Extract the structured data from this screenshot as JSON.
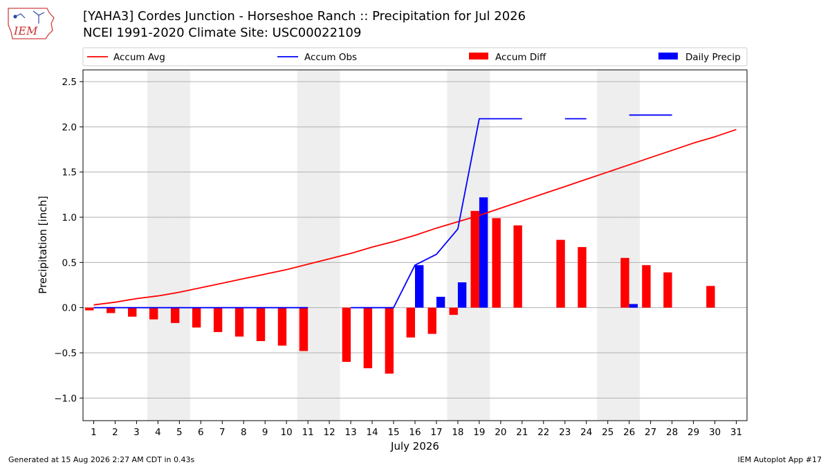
{
  "header": {
    "title_line1": "[YAHA3] Cordes Junction - Horseshoe Ranch :: Precipitation for Jul 2026",
    "title_line2": "NCEI 1991-2020 Climate Site: USC00022109",
    "logo_text": "IEM"
  },
  "footer": {
    "generated": "Generated at 15 Aug 2026 2:27 AM CDT in 0.43s",
    "app": "IEM Autoplot App #17"
  },
  "colors": {
    "avg": "#ff0000",
    "obs": "#0000ff",
    "diff": "#ff0000",
    "daily": "#0000ff",
    "weekend": "#eeeeee",
    "grid": "#b0b0b0"
  },
  "chart_data": {
    "type": "bar",
    "xlabel": "July 2026",
    "ylabel": "Precipitation [inch]",
    "xlim": [
      0.5,
      31.5
    ],
    "ylim": [
      -1.25,
      2.63
    ],
    "yticks": [
      -1.0,
      -0.5,
      0.0,
      0.5,
      1.0,
      1.5,
      2.0,
      2.5
    ],
    "ytick_labels": [
      "−1.0",
      "−0.5",
      "0.0",
      "0.5",
      "1.0",
      "1.5",
      "2.0",
      "2.5"
    ],
    "x": [
      1,
      2,
      3,
      4,
      5,
      6,
      7,
      8,
      9,
      10,
      11,
      12,
      13,
      14,
      15,
      16,
      17,
      18,
      19,
      20,
      21,
      22,
      23,
      24,
      25,
      26,
      27,
      28,
      29,
      30,
      31
    ],
    "xtick_labels": [
      "1",
      "2",
      "3",
      "4",
      "5",
      "6",
      "7",
      "8",
      "9",
      "10",
      "11",
      "12",
      "13",
      "14",
      "15",
      "16",
      "17",
      "18",
      "19",
      "20",
      "21",
      "22",
      "23",
      "24",
      "25",
      "26",
      "27",
      "28",
      "29",
      "30",
      "31"
    ],
    "weekend_days": [
      4,
      5,
      11,
      12,
      18,
      19,
      25,
      26
    ],
    "grid": true,
    "legend": {
      "placement": "top",
      "entries": [
        {
          "label": "Accum Avg",
          "kind": "line",
          "color": "#ff0000"
        },
        {
          "label": "Accum Obs",
          "kind": "line",
          "color": "#0000ff"
        },
        {
          "label": "Accum Diff",
          "kind": "bar",
          "color": "#ff0000"
        },
        {
          "label": "Daily Precip",
          "kind": "bar",
          "color": "#0000ff"
        }
      ]
    },
    "series": [
      {
        "name": "Accum Avg",
        "type": "line",
        "values": [
          0.03,
          0.06,
          0.1,
          0.13,
          0.17,
          0.22,
          0.27,
          0.32,
          0.37,
          0.42,
          0.48,
          0.54,
          0.6,
          0.67,
          0.73,
          0.8,
          0.88,
          0.95,
          1.02,
          1.1,
          1.18,
          1.26,
          1.34,
          1.42,
          1.5,
          1.58,
          1.66,
          1.74,
          1.82,
          1.89,
          1.97
        ]
      },
      {
        "name": "Accum Obs",
        "type": "line",
        "values": [
          0.0,
          0.0,
          0.0,
          0.0,
          0.0,
          0.0,
          0.0,
          0.0,
          0.0,
          0.0,
          0.0,
          null,
          0.0,
          0.0,
          0.0,
          0.47,
          0.59,
          0.87,
          2.09,
          2.09,
          2.09,
          null,
          2.09,
          2.09,
          null,
          2.13,
          2.13,
          2.13,
          null,
          null,
          null
        ]
      },
      {
        "name": "Accum Diff",
        "type": "bar",
        "values": [
          -0.03,
          -0.06,
          -0.1,
          -0.13,
          -0.17,
          -0.22,
          -0.27,
          -0.32,
          -0.37,
          -0.42,
          -0.48,
          null,
          -0.6,
          -0.67,
          -0.73,
          -0.33,
          -0.29,
          -0.08,
          1.07,
          0.99,
          0.91,
          null,
          0.75,
          0.67,
          null,
          0.55,
          0.47,
          0.39,
          null,
          0.24,
          null
        ]
      },
      {
        "name": "Daily Precip",
        "type": "bar",
        "values": [
          0,
          0,
          0,
          0,
          0,
          0,
          0,
          0,
          0,
          0,
          0,
          null,
          0,
          0,
          0,
          0.47,
          0.12,
          0.28,
          1.22,
          0,
          0,
          null,
          0,
          0,
          null,
          0.04,
          0,
          0,
          null,
          null,
          null
        ]
      }
    ]
  }
}
